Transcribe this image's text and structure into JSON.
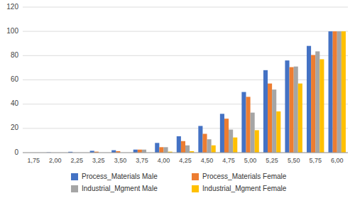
{
  "chart_data": {
    "type": "bar",
    "categories": [
      "1,75",
      "2,00",
      "2,25",
      "3,25",
      "3,50",
      "3,75",
      "4,00",
      "4,25",
      "4,50",
      "4,75",
      "5,00",
      "5,25",
      "5,50",
      "5,75",
      "6,00"
    ],
    "series": [
      {
        "name": "Process_Materials Male",
        "color": "#4472C4",
        "values": [
          0.0,
          0.2,
          0.7,
          1.5,
          2.0,
          2.5,
          8.0,
          13.5,
          22.0,
          32.0,
          50.0,
          68.0,
          76.0,
          88.0,
          100.0
        ]
      },
      {
        "name": "Process_Materials Female",
        "color": "#ED7D31",
        "values": [
          0.0,
          0.0,
          0.0,
          0.8,
          1.2,
          2.5,
          4.5,
          9.5,
          15.5,
          28.0,
          46.0,
          57.0,
          70.5,
          80.5,
          100.0
        ]
      },
      {
        "name": "Industrial_Mgment Male",
        "color": "#A5A5A5",
        "values": [
          0.0,
          0.0,
          0.0,
          0.0,
          0.0,
          2.5,
          4.5,
          6.0,
          11.0,
          19.0,
          33.0,
          52.0,
          71.0,
          83.5,
          100.0
        ]
      },
      {
        "name": "Industrial_Mgment Female",
        "color": "#FFC000",
        "values": [
          0.0,
          0.0,
          0.0,
          0.0,
          0.0,
          0.0,
          0.8,
          1.2,
          6.0,
          12.5,
          18.5,
          34.0,
          57.0,
          77.0,
          100.0
        ]
      }
    ],
    "ylim": [
      0,
      120
    ],
    "yticks": [
      0,
      20,
      40,
      60,
      80,
      100,
      120
    ],
    "grid": true,
    "legend": "bottom"
  }
}
